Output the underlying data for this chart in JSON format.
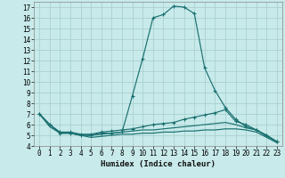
{
  "title": "",
  "xlabel": "Humidex (Indice chaleur)",
  "ylabel": "",
  "bg_color": "#c8eaea",
  "grid_color": "#aad0d0",
  "line_color": "#1a7070",
  "xlim": [
    -0.5,
    23.5
  ],
  "ylim": [
    4,
    17.5
  ],
  "xtick_labels": [
    "0",
    "1",
    "2",
    "3",
    "4",
    "5",
    "6",
    "7",
    "8",
    "9",
    "10",
    "11",
    "12",
    "13",
    "14",
    "15",
    "16",
    "17",
    "18",
    "19",
    "20",
    "21",
    "22",
    "23"
  ],
  "xticks": [
    0,
    1,
    2,
    3,
    4,
    5,
    6,
    7,
    8,
    9,
    10,
    11,
    12,
    13,
    14,
    15,
    16,
    17,
    18,
    19,
    20,
    21,
    22,
    23
  ],
  "yticks": [
    4,
    5,
    6,
    7,
    8,
    9,
    10,
    11,
    12,
    13,
    14,
    15,
    16,
    17
  ],
  "lines": [
    {
      "x": [
        0,
        1,
        2,
        3,
        4,
        5,
        6,
        7,
        8,
        9,
        10,
        11,
        12,
        13,
        14,
        15,
        16,
        17,
        18,
        19,
        20,
        21,
        22,
        23
      ],
      "y": [
        7.0,
        6.0,
        5.2,
        5.2,
        5.0,
        5.0,
        5.2,
        5.2,
        5.3,
        8.7,
        12.2,
        16.0,
        16.3,
        17.1,
        17.0,
        16.4,
        11.3,
        9.2,
        7.6,
        6.5,
        5.8,
        5.5,
        5.0,
        4.4
      ],
      "marker": "+"
    },
    {
      "x": [
        0,
        1,
        2,
        3,
        4,
        5,
        6,
        7,
        8,
        9,
        10,
        11,
        12,
        13,
        14,
        15,
        16,
        17,
        18,
        19,
        20,
        21,
        22,
        23
      ],
      "y": [
        7.0,
        6.0,
        5.3,
        5.3,
        5.1,
        5.1,
        5.3,
        5.4,
        5.5,
        5.6,
        5.8,
        6.0,
        6.1,
        6.2,
        6.5,
        6.7,
        6.9,
        7.1,
        7.4,
        6.3,
        6.0,
        5.5,
        5.0,
        4.4
      ],
      "marker": "+"
    },
    {
      "x": [
        0,
        1,
        2,
        3,
        4,
        5,
        6,
        7,
        8,
        9,
        10,
        11,
        12,
        13,
        14,
        15,
        16,
        17,
        18,
        19,
        20,
        21,
        22,
        23
      ],
      "y": [
        7.0,
        6.0,
        5.2,
        5.2,
        5.0,
        5.0,
        5.1,
        5.2,
        5.3,
        5.4,
        5.5,
        5.5,
        5.6,
        5.7,
        5.8,
        5.9,
        6.0,
        6.1,
        6.2,
        6.0,
        5.7,
        5.5,
        4.9,
        4.4
      ],
      "marker": null
    },
    {
      "x": [
        0,
        1,
        2,
        3,
        4,
        5,
        6,
        7,
        8,
        9,
        10,
        11,
        12,
        13,
        14,
        15,
        16,
        17,
        18,
        19,
        20,
        21,
        22,
        23
      ],
      "y": [
        7.0,
        5.8,
        5.2,
        5.2,
        5.0,
        4.8,
        4.9,
        5.0,
        5.1,
        5.1,
        5.2,
        5.2,
        5.3,
        5.3,
        5.4,
        5.4,
        5.5,
        5.5,
        5.6,
        5.6,
        5.5,
        5.3,
        4.8,
        4.3
      ],
      "marker": null
    }
  ]
}
